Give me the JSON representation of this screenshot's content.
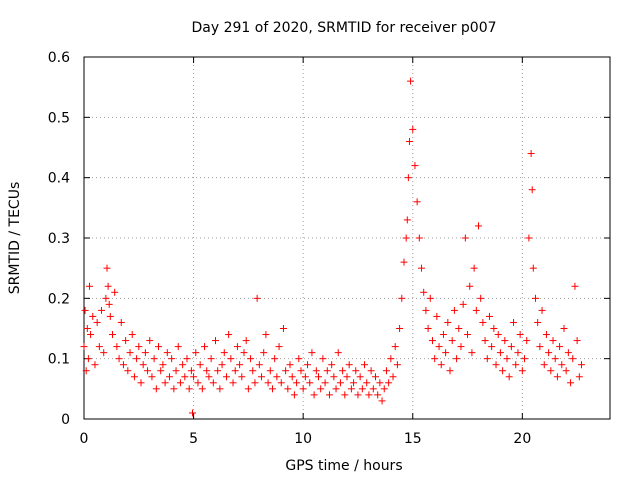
{
  "chart_data": {
    "type": "scatter",
    "title": "Day 291 of 2020, SRMTID for receiver p007",
    "xlabel": "GPS time / hours",
    "ylabel": "SRMTID / TECUs",
    "xlim": [
      0,
      24
    ],
    "ylim": [
      0,
      0.6
    ],
    "xticks": [
      0,
      5,
      10,
      15,
      20
    ],
    "yticks": [
      0,
      0.1,
      0.2,
      0.3,
      0.4,
      0.5,
      0.6
    ],
    "xtick_labels": [
      "0",
      "5",
      "10",
      "15",
      "20"
    ],
    "ytick_labels": [
      "0",
      "0.1",
      "0.2",
      "0.3",
      "0.4",
      "0.5",
      "0.6"
    ],
    "grid": true,
    "marker": "+",
    "color": "#ff0000",
    "series": [
      {
        "name": "SRMTID",
        "x": [
          0.0,
          0.05,
          0.1,
          0.15,
          0.2,
          0.25,
          0.3,
          0.4,
          0.5,
          0.6,
          0.7,
          0.8,
          0.9,
          1.0,
          1.05,
          1.1,
          1.15,
          1.2,
          1.3,
          1.4,
          1.5,
          1.6,
          1.7,
          1.8,
          1.9,
          2.0,
          2.1,
          2.2,
          2.3,
          2.4,
          2.5,
          2.6,
          2.7,
          2.8,
          2.9,
          3.0,
          3.1,
          3.2,
          3.3,
          3.4,
          3.5,
          3.6,
          3.7,
          3.8,
          3.9,
          4.0,
          4.1,
          4.2,
          4.3,
          4.4,
          4.5,
          4.6,
          4.7,
          4.8,
          4.9,
          4.95,
          5.0,
          5.1,
          5.2,
          5.3,
          5.4,
          5.5,
          5.6,
          5.7,
          5.8,
          5.9,
          6.0,
          6.1,
          6.2,
          6.3,
          6.4,
          6.5,
          6.6,
          6.7,
          6.8,
          6.9,
          7.0,
          7.1,
          7.2,
          7.3,
          7.4,
          7.5,
          7.6,
          7.7,
          7.8,
          7.9,
          8.0,
          8.1,
          8.2,
          8.3,
          8.4,
          8.5,
          8.6,
          8.7,
          8.8,
          8.9,
          9.0,
          9.1,
          9.2,
          9.3,
          9.4,
          9.5,
          9.6,
          9.7,
          9.8,
          9.9,
          10.0,
          10.1,
          10.2,
          10.3,
          10.4,
          10.5,
          10.6,
          10.7,
          10.8,
          10.9,
          11.0,
          11.1,
          11.2,
          11.3,
          11.4,
          11.5,
          11.6,
          11.7,
          11.8,
          11.9,
          12.0,
          12.1,
          12.2,
          12.3,
          12.4,
          12.5,
          12.6,
          12.7,
          12.8,
          12.9,
          13.0,
          13.1,
          13.2,
          13.3,
          13.4,
          13.5,
          13.6,
          13.7,
          13.8,
          13.9,
          14.0,
          14.1,
          14.2,
          14.3,
          14.4,
          14.5,
          14.6,
          14.7,
          14.75,
          14.8,
          14.85,
          14.9,
          15.0,
          15.1,
          15.2,
          15.3,
          15.4,
          15.5,
          15.6,
          15.7,
          15.8,
          15.9,
          16.0,
          16.1,
          16.2,
          16.3,
          16.4,
          16.5,
          16.6,
          16.7,
          16.8,
          16.9,
          17.0,
          17.1,
          17.2,
          17.3,
          17.4,
          17.5,
          17.6,
          17.7,
          17.8,
          17.9,
          18.0,
          18.1,
          18.2,
          18.3,
          18.4,
          18.5,
          18.6,
          18.7,
          18.8,
          18.9,
          19.0,
          19.1,
          19.2,
          19.3,
          19.4,
          19.5,
          19.6,
          19.7,
          19.8,
          19.9,
          20.0,
          20.1,
          20.2,
          20.3,
          20.4,
          20.45,
          20.5,
          20.6,
          20.7,
          20.8,
          20.9,
          21.0,
          21.1,
          21.2,
          21.3,
          21.4,
          21.5,
          21.6,
          21.7,
          21.8,
          21.9,
          22.0,
          22.1,
          22.2,
          22.3,
          22.4,
          22.5,
          22.6,
          22.7
        ],
        "y": [
          0.12,
          0.18,
          0.08,
          0.15,
          0.1,
          0.22,
          0.14,
          0.17,
          0.09,
          0.16,
          0.12,
          0.18,
          0.11,
          0.2,
          0.25,
          0.22,
          0.19,
          0.17,
          0.14,
          0.21,
          0.12,
          0.1,
          0.16,
          0.09,
          0.13,
          0.08,
          0.11,
          0.14,
          0.07,
          0.1,
          0.12,
          0.06,
          0.09,
          0.11,
          0.08,
          0.13,
          0.07,
          0.1,
          0.05,
          0.12,
          0.08,
          0.09,
          0.06,
          0.11,
          0.07,
          0.1,
          0.05,
          0.08,
          0.12,
          0.06,
          0.09,
          0.07,
          0.1,
          0.05,
          0.08,
          0.01,
          0.07,
          0.11,
          0.06,
          0.09,
          0.05,
          0.12,
          0.08,
          0.07,
          0.1,
          0.06,
          0.13,
          0.08,
          0.05,
          0.09,
          0.11,
          0.07,
          0.14,
          0.1,
          0.06,
          0.08,
          0.12,
          0.09,
          0.07,
          0.11,
          0.13,
          0.05,
          0.1,
          0.08,
          0.06,
          0.2,
          0.09,
          0.07,
          0.11,
          0.14,
          0.06,
          0.08,
          0.05,
          0.1,
          0.07,
          0.12,
          0.06,
          0.15,
          0.08,
          0.05,
          0.09,
          0.07,
          0.04,
          0.06,
          0.1,
          0.08,
          0.05,
          0.07,
          0.09,
          0.06,
          0.11,
          0.04,
          0.08,
          0.07,
          0.05,
          0.1,
          0.06,
          0.08,
          0.04,
          0.09,
          0.07,
          0.05,
          0.11,
          0.06,
          0.08,
          0.04,
          0.07,
          0.09,
          0.05,
          0.06,
          0.08,
          0.04,
          0.07,
          0.05,
          0.09,
          0.06,
          0.04,
          0.08,
          0.05,
          0.07,
          0.04,
          0.06,
          0.03,
          0.05,
          0.08,
          0.06,
          0.1,
          0.07,
          0.12,
          0.09,
          0.15,
          0.2,
          0.26,
          0.3,
          0.33,
          0.4,
          0.46,
          0.56,
          0.48,
          0.42,
          0.36,
          0.3,
          0.25,
          0.21,
          0.18,
          0.15,
          0.2,
          0.13,
          0.1,
          0.17,
          0.12,
          0.09,
          0.14,
          0.11,
          0.16,
          0.08,
          0.13,
          0.18,
          0.1,
          0.15,
          0.12,
          0.19,
          0.3,
          0.14,
          0.22,
          0.11,
          0.25,
          0.18,
          0.32,
          0.2,
          0.16,
          0.13,
          0.1,
          0.17,
          0.12,
          0.15,
          0.09,
          0.14,
          0.11,
          0.08,
          0.13,
          0.1,
          0.07,
          0.12,
          0.16,
          0.09,
          0.11,
          0.14,
          0.08,
          0.1,
          0.13,
          0.3,
          0.44,
          0.38,
          0.25,
          0.2,
          0.16,
          0.12,
          0.18,
          0.09,
          0.14,
          0.11,
          0.08,
          0.13,
          0.1,
          0.07,
          0.12,
          0.09,
          0.15,
          0.08,
          0.11,
          0.06,
          0.1,
          0.22,
          0.13,
          0.07,
          0.09
        ]
      }
    ]
  }
}
